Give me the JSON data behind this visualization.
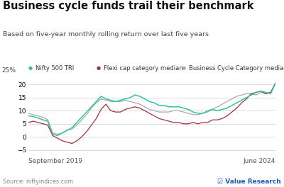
{
  "title": "Business cycle funds trail their benchmark",
  "subtitle": "Based on five-year monthly rolling return over last five years",
  "ylabel_text": "25%",
  "x_label_left": "September 2019",
  "x_label_right": "June 2024",
  "source": "Source: niftyindices.com",
  "watermark": "☑ Value Research",
  "ylim": [
    -7,
    23
  ],
  "yticks": [
    -5,
    0,
    5,
    10,
    15,
    20
  ],
  "legend": [
    {
      "label": "Nifty 500 TRI",
      "color": "#2ec4a5"
    },
    {
      "label": "Flexi cap category median",
      "color": "#a0303a"
    },
    {
      "label": "Business Cycle Category median",
      "color": "#aaaaaa"
    }
  ],
  "nifty500": [
    8.0,
    7.8,
    7.2,
    6.5,
    6.0,
    1.0,
    0.5,
    1.5,
    2.5,
    3.5,
    5.5,
    7.5,
    9.5,
    11.5,
    13.5,
    15.5,
    14.5,
    14.0,
    13.5,
    14.0,
    14.5,
    15.0,
    16.0,
    15.5,
    14.5,
    13.5,
    13.0,
    12.0,
    12.0,
    11.5,
    11.5,
    11.5,
    11.0,
    10.5,
    9.5,
    9.0,
    9.0,
    10.0,
    10.5,
    10.0,
    10.5,
    11.0,
    12.0,
    13.0,
    14.0,
    15.0,
    16.0,
    17.0,
    17.5,
    17.0,
    16.5,
    20.5
  ],
  "flexi": [
    5.5,
    6.0,
    5.5,
    5.0,
    4.5,
    0.5,
    -0.5,
    -1.5,
    -2.0,
    -2.5,
    -1.5,
    0.0,
    2.0,
    4.5,
    7.0,
    10.5,
    12.5,
    10.0,
    9.5,
    9.5,
    10.5,
    11.0,
    11.5,
    11.0,
    10.0,
    9.0,
    8.0,
    7.0,
    6.5,
    6.0,
    5.5,
    5.5,
    5.0,
    5.0,
    5.5,
    5.0,
    5.5,
    5.5,
    6.5,
    6.5,
    7.0,
    8.0,
    9.5,
    11.0,
    13.0,
    14.5,
    16.5,
    17.0,
    17.5,
    16.5,
    17.0,
    20.5
  ],
  "bc_median": [
    9.0,
    8.5,
    8.0,
    7.5,
    6.5,
    1.5,
    1.0,
    1.5,
    2.5,
    3.0,
    4.5,
    6.5,
    8.5,
    11.0,
    13.0,
    14.5,
    14.0,
    13.5,
    13.5,
    13.5,
    14.0,
    13.5,
    13.0,
    12.5,
    11.5,
    10.5,
    10.0,
    9.5,
    9.5,
    9.5,
    10.0,
    10.0,
    9.5,
    9.0,
    8.5,
    8.5,
    9.0,
    9.5,
    10.5,
    11.5,
    12.5,
    13.5,
    14.5,
    15.5,
    16.0,
    16.5,
    16.5,
    16.0,
    17.0,
    16.5,
    17.0,
    20.5
  ]
}
